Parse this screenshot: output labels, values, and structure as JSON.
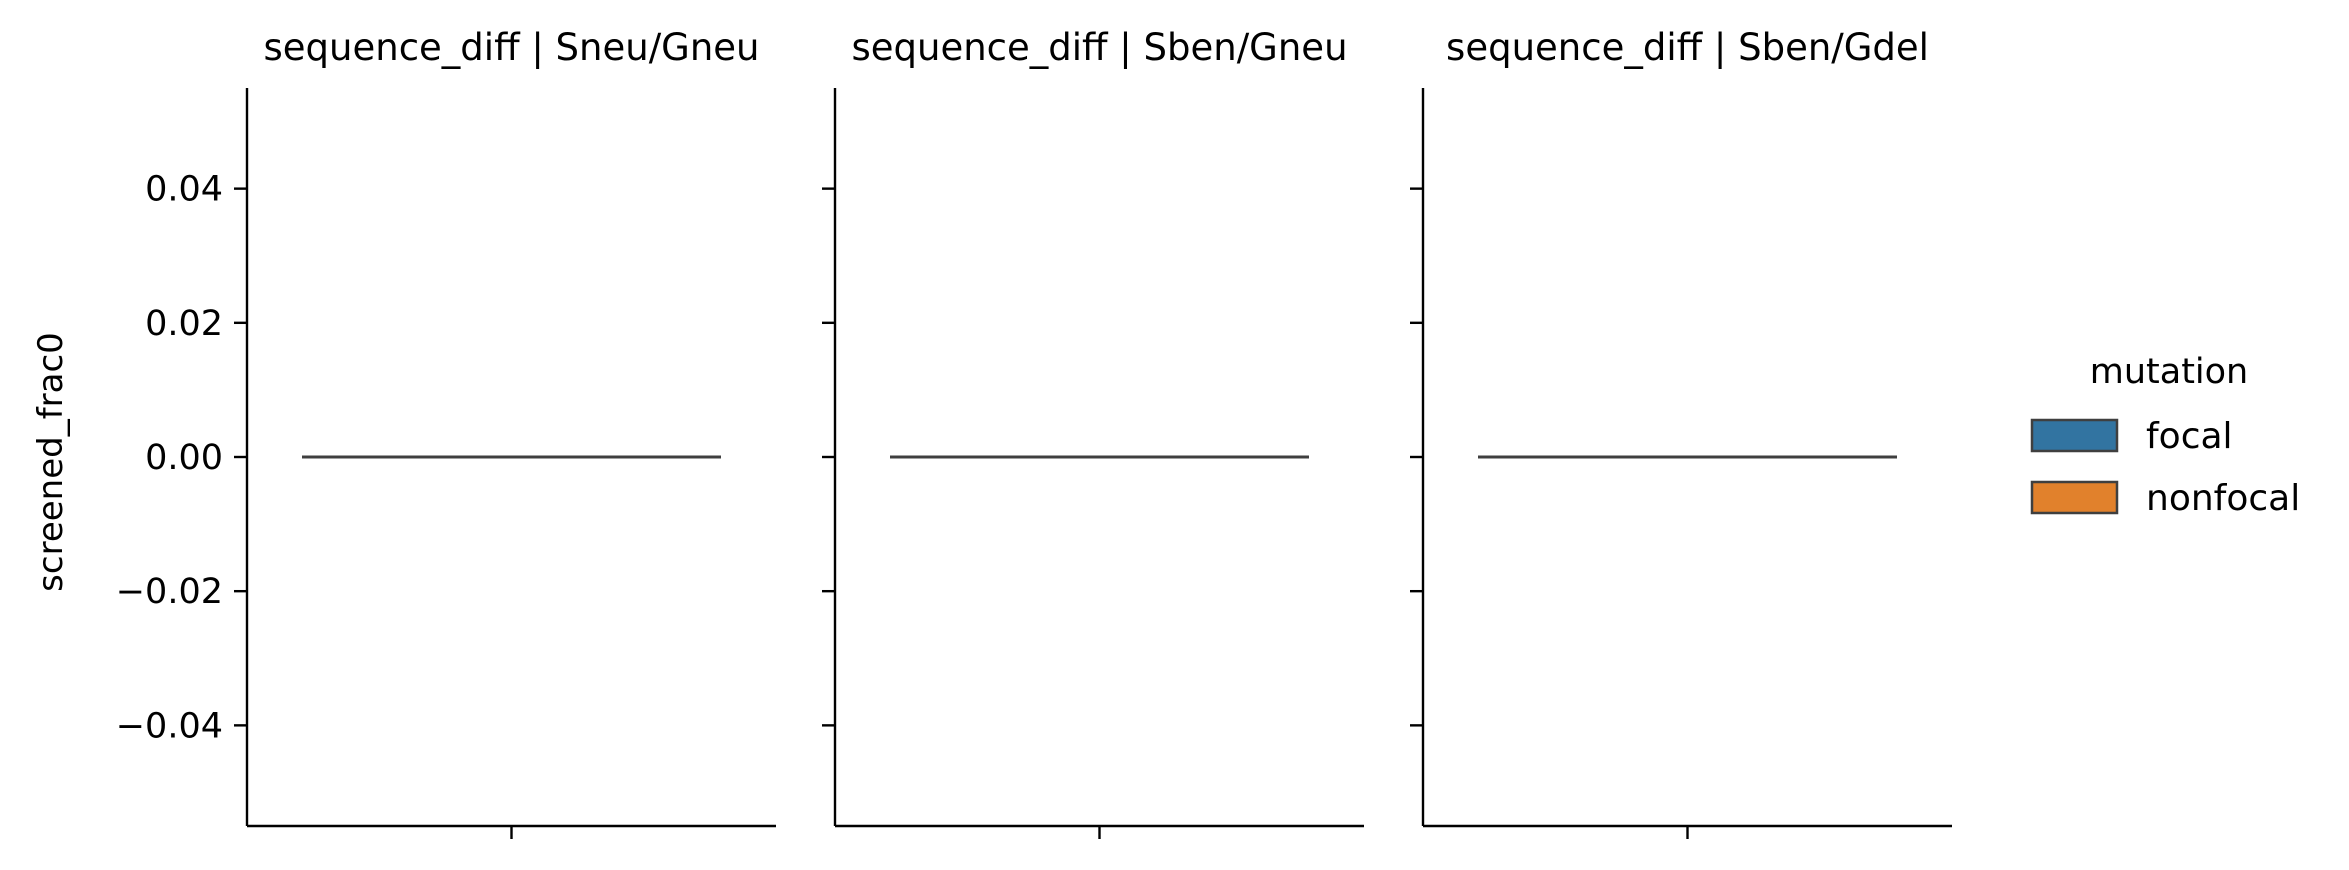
{
  "chart_data": {
    "type": "bar",
    "ylabel": "screened_frac0",
    "ylim": [
      -0.055,
      0.055
    ],
    "yticks": [
      -0.04,
      -0.02,
      0.0,
      0.02,
      0.04
    ],
    "ytick_labels": [
      "−0.04",
      "−0.02",
      "0.00",
      "0.02",
      "0.04"
    ],
    "grid": false,
    "legend": {
      "title": "mutation",
      "placement": "right",
      "entries": [
        {
          "label": "focal",
          "color": "#3274a1"
        },
        {
          "label": "nonfocal",
          "color": "#e1812c"
        }
      ]
    },
    "panels": [
      {
        "title": "sequence_diff | Sneu/Gneu",
        "series": [
          {
            "name": "focal",
            "values": [
              0.0
            ]
          },
          {
            "name": "nonfocal",
            "values": [
              0.0
            ]
          }
        ]
      },
      {
        "title": "sequence_diff | Sben/Gneu",
        "series": [
          {
            "name": "focal",
            "values": [
              0.0
            ]
          },
          {
            "name": "nonfocal",
            "values": [
              0.0
            ]
          }
        ]
      },
      {
        "title": "sequence_diff | Sben/Gdel",
        "series": [
          {
            "name": "focal",
            "values": [
              0.0
            ]
          },
          {
            "name": "nonfocal",
            "values": [
              0.0
            ]
          }
        ]
      }
    ]
  }
}
